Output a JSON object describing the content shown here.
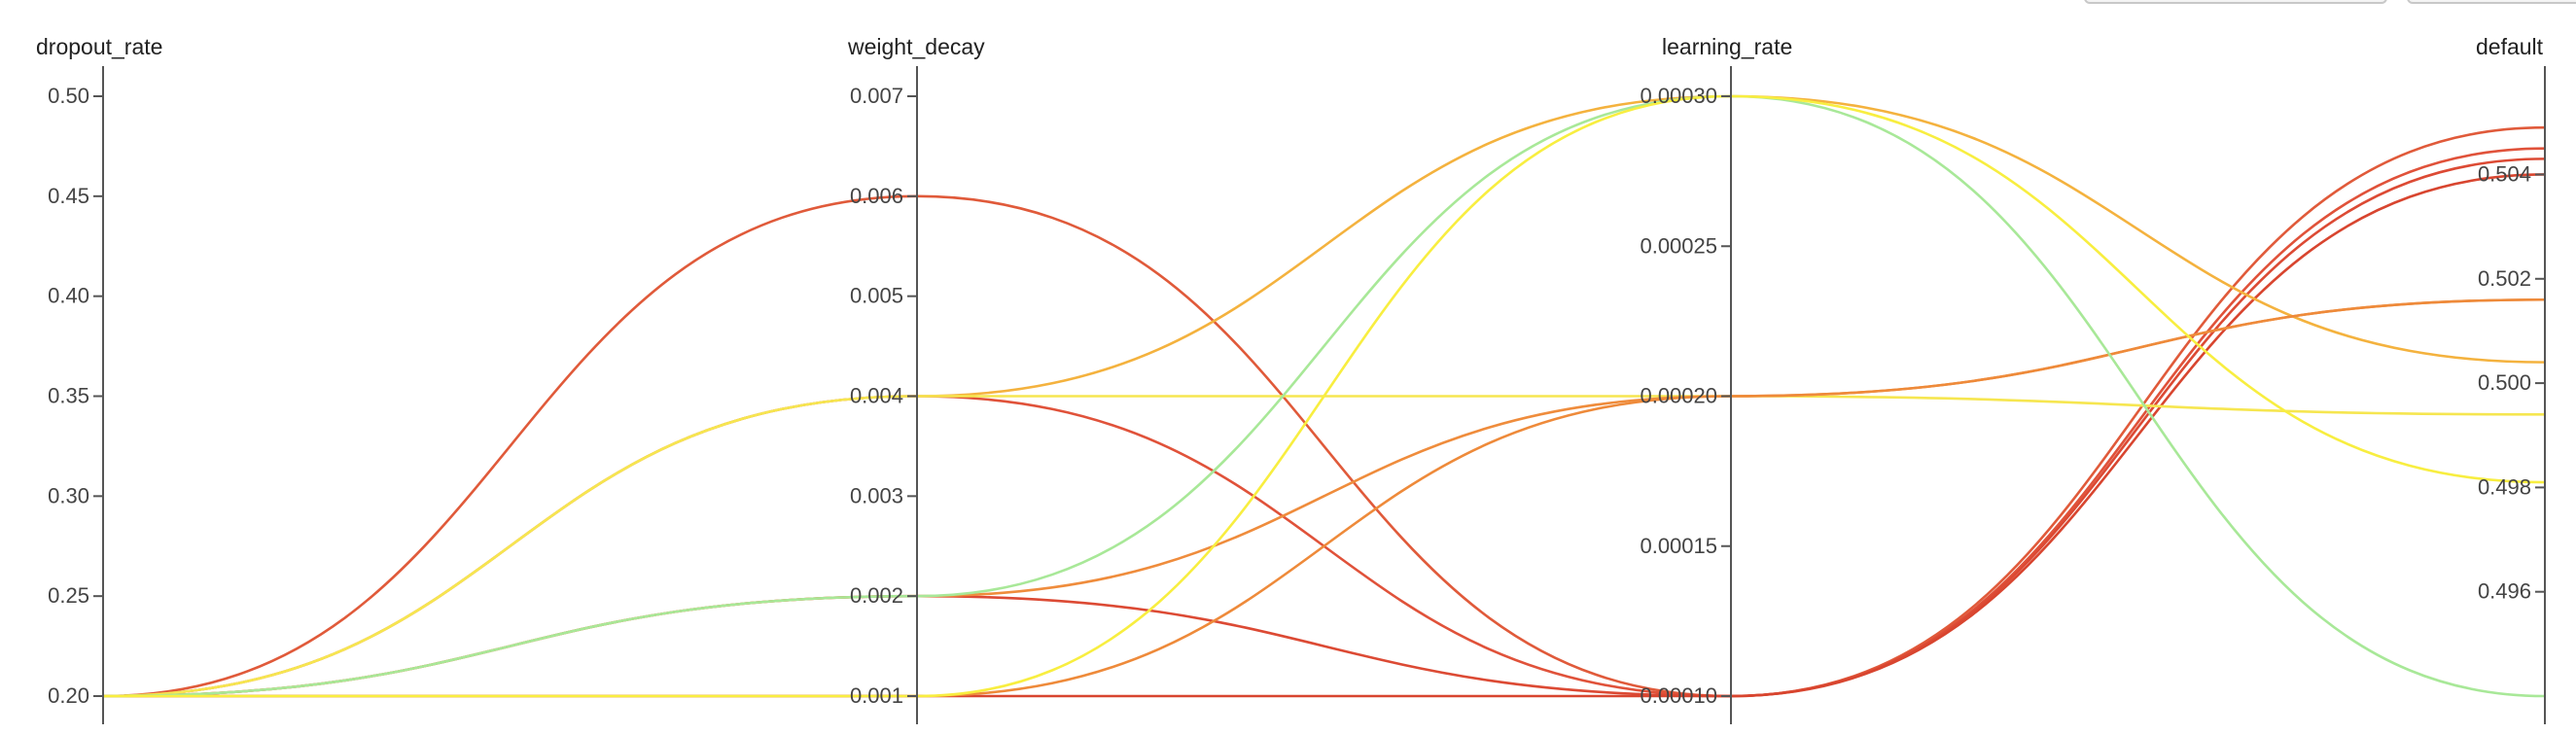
{
  "chart_data": {
    "type": "parallel_coordinates",
    "axes": [
      {
        "key": "dropout_rate",
        "label": "dropout_rate",
        "range": [
          0.2,
          0.5
        ],
        "ticks": [
          0.2,
          0.25,
          0.3,
          0.35,
          0.4,
          0.45,
          0.5
        ],
        "tick_labels": [
          "0.20",
          "0.25",
          "0.30",
          "0.35",
          "0.40",
          "0.45",
          "0.50"
        ]
      },
      {
        "key": "weight_decay",
        "label": "weight_decay",
        "range": [
          0.001,
          0.007
        ],
        "ticks": [
          0.001,
          0.002,
          0.003,
          0.004,
          0.005,
          0.006,
          0.007
        ],
        "tick_labels": [
          "0.001",
          "0.002",
          "0.003",
          "0.004",
          "0.005",
          "0.006",
          "0.007"
        ]
      },
      {
        "key": "learning_rate",
        "label": "learning_rate",
        "range": [
          0.0001,
          0.0003
        ],
        "ticks": [
          0.0001,
          0.00015,
          0.0002,
          0.00025,
          0.0003
        ],
        "tick_labels": [
          "0.00010",
          "0.00015",
          "0.00020",
          "0.00025",
          "0.00030"
        ]
      },
      {
        "key": "metric",
        "label": "default",
        "range": [
          0.494,
          0.5055
        ],
        "ticks": [
          0.496,
          0.498,
          0.5,
          0.502,
          0.504
        ],
        "tick_labels": [
          "0.496",
          "0.498",
          "0.500",
          "0.502",
          "0.504"
        ]
      }
    ],
    "series": [
      {
        "values": [
          0.2,
          0.006,
          0.0001,
          0.5049
        ],
        "color": "#e05a3a"
      },
      {
        "values": [
          0.2,
          0.004,
          0.0001,
          0.5045
        ],
        "color": "#e0523a"
      },
      {
        "values": [
          0.2,
          0.002,
          0.0001,
          0.5043
        ],
        "color": "#dc4a34"
      },
      {
        "values": [
          0.2,
          0.001,
          0.0001,
          0.504
        ],
        "color": "#d8452f"
      },
      {
        "values": [
          0.2,
          0.004,
          0.0003,
          0.5004
        ],
        "color": "#f4b23e"
      },
      {
        "values": [
          0.2,
          0.004,
          0.0002,
          0.4994
        ],
        "color": "#f6e650"
      },
      {
        "values": [
          0.2,
          0.002,
          0.0002,
          0.5016
        ],
        "color": "#ef8c3c"
      },
      {
        "values": [
          0.2,
          0.001,
          0.0002,
          0.5016
        ],
        "color": "#ee8a3a"
      },
      {
        "values": [
          0.2,
          0.002,
          0.0003,
          0.494
        ],
        "color": "#a8e898"
      },
      {
        "values": [
          0.2,
          0.001,
          0.0003,
          0.4981
        ],
        "color": "#f8ee40"
      }
    ],
    "grid": false,
    "legend": "none"
  }
}
